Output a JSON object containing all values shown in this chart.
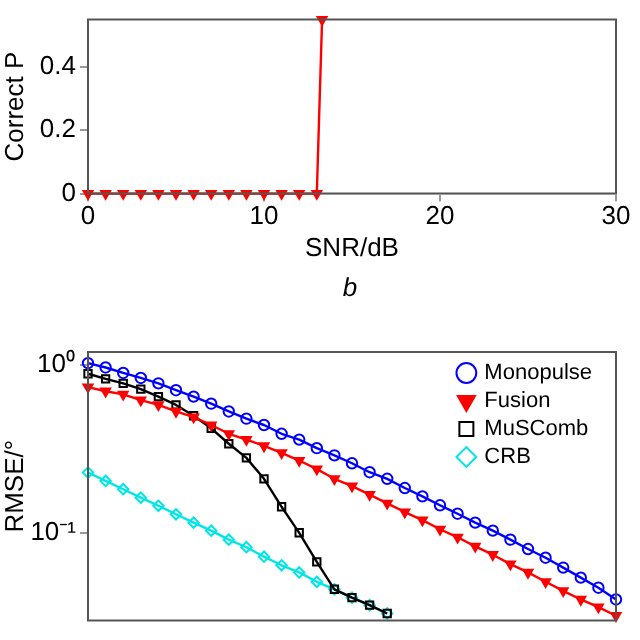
{
  "chart_data": [
    {
      "type": "line",
      "xlabel": "SNR/dB",
      "ylabel": "Correct P",
      "annotations": [
        "b"
      ],
      "xlim": [
        0,
        30
      ],
      "xticks": [
        0,
        10,
        20,
        30
      ],
      "ylim": [
        0,
        0.55
      ],
      "yticks": [
        0,
        0.2,
        0.4
      ],
      "grid": false,
      "legend": false,
      "series": [
        {
          "color": "#ff0000",
          "marker": "triangle",
          "x": [
            0,
            1,
            2,
            3,
            4,
            5,
            6,
            7,
            8,
            9,
            10,
            11,
            12,
            13,
            13.3
          ],
          "values": [
            0,
            0,
            0,
            0,
            0,
            0,
            0,
            0,
            0,
            0,
            0,
            0,
            0,
            0,
            0.55
          ]
        }
      ]
    },
    {
      "type": "line",
      "ylabel": "RMSE/°",
      "log": "y",
      "xlim": [
        0,
        30
      ],
      "ylim": [
        0.03,
        1.2
      ],
      "yticks": [
        {
          "value": 1,
          "label": "10⁰"
        },
        {
          "value": 0.1,
          "label": "10⁻¹"
        }
      ],
      "tick_labels": "y",
      "grid": false,
      "legend": "top right",
      "x": [
        0,
        1,
        2,
        3,
        4,
        5,
        6,
        7,
        8,
        9,
        10,
        11,
        12,
        13,
        14,
        15,
        16,
        17,
        18,
        19,
        20,
        21,
        22,
        23,
        24,
        25,
        26,
        27,
        28,
        29,
        30
      ],
      "series": [
        {
          "name": "Monopulse",
          "color": "#0000ff",
          "marker": "circle",
          "values": [
            1.03,
            0.97,
            0.9,
            0.84,
            0.78,
            0.71,
            0.65,
            0.59,
            0.53,
            0.48,
            0.44,
            0.39,
            0.36,
            0.32,
            0.29,
            0.26,
            0.23,
            0.21,
            0.185,
            0.165,
            0.146,
            0.13,
            0.115,
            0.103,
            0.091,
            0.08,
            0.071,
            0.062,
            0.054,
            0.047,
            0.04
          ]
        },
        {
          "name": "Fusion",
          "color": "#ff0000",
          "marker": "triangle",
          "values": [
            0.74,
            0.7,
            0.67,
            0.62,
            0.58,
            0.53,
            0.49,
            0.44,
            0.39,
            0.36,
            0.33,
            0.3,
            0.27,
            0.24,
            0.21,
            0.19,
            0.169,
            0.15,
            0.133,
            0.119,
            0.105,
            0.094,
            0.083,
            0.074,
            0.065,
            0.058,
            0.051,
            0.045,
            0.04,
            0.036,
            0.032
          ]
        },
        {
          "name": "MuSComb",
          "color": "#000000",
          "marker": "square",
          "values": [
            0.89,
            0.83,
            0.78,
            0.72,
            0.65,
            0.58,
            0.5,
            0.42,
            0.34,
            0.28,
            0.21,
            0.143,
            0.1,
            0.067,
            0.046,
            0.041,
            0.037,
            0.033,
            null,
            null,
            null,
            null,
            null,
            null,
            null,
            null,
            null,
            null,
            null,
            null,
            null
          ]
        },
        {
          "name": "CRB",
          "color": "#00e5e5",
          "marker": "diamond",
          "values": [
            0.229,
            0.204,
            0.182,
            0.162,
            0.145,
            0.129,
            0.115,
            0.103,
            0.091,
            0.082,
            0.072,
            0.064,
            0.058,
            0.051,
            0.046,
            0.041,
            0.037,
            0.033,
            null,
            null,
            null,
            null,
            null,
            null,
            null,
            null,
            null,
            null,
            null,
            null,
            null
          ]
        }
      ]
    }
  ]
}
